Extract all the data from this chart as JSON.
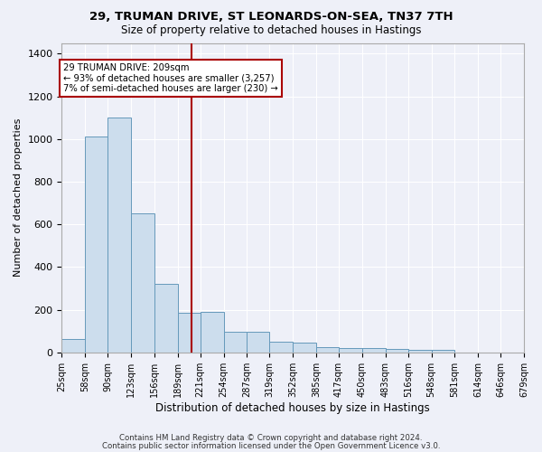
{
  "title": "29, TRUMAN DRIVE, ST LEONARDS-ON-SEA, TN37 7TH",
  "subtitle": "Size of property relative to detached houses in Hastings",
  "xlabel": "Distribution of detached houses by size in Hastings",
  "ylabel": "Number of detached properties",
  "footnote1": "Contains HM Land Registry data © Crown copyright and database right 2024.",
  "footnote2": "Contains public sector information licensed under the Open Government Licence v3.0.",
  "annotation_line1": "29 TRUMAN DRIVE: 209sqm",
  "annotation_line2": "← 93% of detached houses are smaller (3,257)",
  "annotation_line3": "7% of semi-detached houses are larger (230) →",
  "bar_color": "#ccdded",
  "bar_edge_color": "#6699bb",
  "vline_color": "#aa0000",
  "background_color": "#eef0f8",
  "grid_color": "#ffffff",
  "bin_edges": [
    25,
    58,
    90,
    123,
    156,
    189,
    221,
    254,
    287,
    319,
    352,
    385,
    417,
    450,
    483,
    516,
    548,
    581,
    614,
    646,
    679
  ],
  "bin_labels": [
    "25sqm",
    "58sqm",
    "90sqm",
    "123sqm",
    "156sqm",
    "189sqm",
    "221sqm",
    "254sqm",
    "287sqm",
    "319sqm",
    "352sqm",
    "385sqm",
    "417sqm",
    "450sqm",
    "483sqm",
    "516sqm",
    "548sqm",
    "581sqm",
    "614sqm",
    "646sqm",
    "679sqm"
  ],
  "counts": [
    65,
    1010,
    1100,
    650,
    320,
    185,
    190,
    95,
    95,
    50,
    48,
    25,
    20,
    20,
    17,
    14,
    12,
    0,
    0,
    0
  ],
  "vline_x": 209,
  "ylim": [
    0,
    1450
  ],
  "yticks": [
    0,
    200,
    400,
    600,
    800,
    1000,
    1200,
    1400
  ]
}
